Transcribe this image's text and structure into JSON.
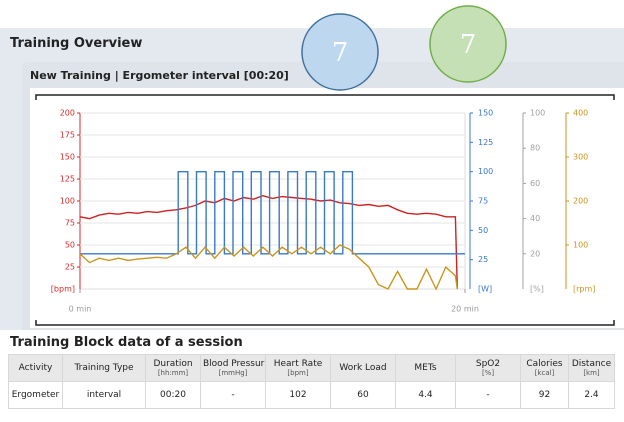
{
  "header": {
    "title": "Training Overview"
  },
  "badges": [
    "7",
    "7"
  ],
  "panel": {
    "title": "New Training | Ergometer interval [00:20]"
  },
  "chart_data": {
    "type": "line",
    "xlim": [
      0,
      20
    ],
    "xticks": [
      {
        "value": 0,
        "label": "0 min"
      },
      {
        "value": 20,
        "label": "20 min"
      }
    ],
    "grid": true,
    "axes": [
      {
        "label": "[bpm]",
        "ylim": [
          0,
          200
        ],
        "yticks": [
          25,
          50,
          75,
          100,
          125,
          150,
          175,
          200
        ],
        "color": "#d42a2a"
      },
      {
        "label": "[W]",
        "ylim": [
          0,
          150
        ],
        "yticks": [
          25,
          50,
          75,
          100,
          125,
          150
        ],
        "color": "#3a78c9"
      },
      {
        "label": "[%]",
        "ylim": [
          0,
          100
        ],
        "yticks": [
          20,
          40,
          60,
          80,
          100
        ],
        "color": "#a0a0a0"
      },
      {
        "label": "[rpm]",
        "ylim": [
          0,
          400
        ],
        "yticks": [
          100,
          200,
          300,
          400
        ],
        "color": "#c8961e"
      }
    ],
    "series": [
      {
        "color": "#cc2222",
        "axis": 0,
        "x": [
          0,
          0.5,
          1,
          1.5,
          2,
          2.5,
          3,
          3.5,
          4,
          4.5,
          5,
          5.5,
          6,
          6.5,
          7,
          7.5,
          8,
          8.5,
          9,
          9.5,
          10,
          10.5,
          11,
          11.5,
          12,
          12.5,
          13,
          13.5,
          14,
          14.5,
          15,
          15.5,
          16,
          16.5,
          17,
          17.5,
          18,
          18.5,
          19,
          19.5,
          19.6
        ],
        "values": [
          82,
          80,
          84,
          86,
          85,
          87,
          86,
          88,
          87,
          89,
          90,
          92,
          95,
          100,
          98,
          103,
          100,
          104,
          102,
          106,
          103,
          105,
          104,
          103,
          102,
          100,
          101,
          98,
          97,
          95,
          96,
          94,
          95,
          90,
          86,
          85,
          86,
          85,
          82,
          82,
          0
        ]
      },
      {
        "color": "#3a78c9",
        "axis": 1,
        "x": [
          0,
          5.1,
          5.1,
          5.6,
          5.6,
          6.05,
          6.05,
          6.55,
          6.55,
          7.0,
          7.0,
          7.5,
          7.5,
          7.95,
          7.95,
          8.45,
          8.45,
          8.9,
          8.9,
          9.4,
          9.4,
          9.85,
          9.85,
          10.35,
          10.35,
          10.8,
          10.8,
          11.3,
          11.3,
          11.75,
          11.75,
          12.25,
          12.25,
          12.7,
          12.7,
          13.2,
          13.2,
          13.65,
          13.65,
          14.15,
          14.15,
          20
        ],
        "values": [
          30,
          30,
          100,
          100,
          30,
          30,
          100,
          100,
          30,
          30,
          100,
          100,
          30,
          30,
          100,
          100,
          30,
          30,
          100,
          100,
          30,
          30,
          100,
          100,
          30,
          30,
          100,
          100,
          30,
          30,
          100,
          100,
          30,
          30,
          100,
          100,
          30,
          30,
          100,
          100,
          30,
          30
        ]
      },
      {
        "color": "#c8961e",
        "axis": 3,
        "x": [
          0,
          0.5,
          1,
          1.5,
          2,
          2.5,
          3,
          3.5,
          4,
          4.5,
          5,
          5.5,
          6,
          6.5,
          7,
          7.5,
          8,
          8.5,
          9,
          9.5,
          10,
          10.5,
          11,
          11.5,
          12,
          12.5,
          13,
          13.5,
          14,
          14.5,
          15,
          15.5,
          16,
          16.5,
          17,
          17.5,
          18,
          18.5,
          19,
          19.5,
          19.6
        ],
        "values": [
          80,
          60,
          70,
          65,
          70,
          65,
          68,
          70,
          72,
          70,
          80,
          95,
          70,
          95,
          70,
          95,
          75,
          95,
          75,
          95,
          75,
          95,
          80,
          95,
          80,
          95,
          80,
          100,
          90,
          70,
          50,
          10,
          0,
          40,
          0,
          0,
          45,
          0,
          50,
          30,
          0
        ]
      }
    ]
  },
  "table": {
    "title": "Training Block data of a session",
    "headers": [
      {
        "label": "Activity"
      },
      {
        "label": "Training Type"
      },
      {
        "label": "Duration",
        "unit": "[hh:mm]"
      },
      {
        "label": "Blood Pressur",
        "unit": "[mmHg]"
      },
      {
        "label": "Heart Rate",
        "unit": "[bpm]"
      },
      {
        "label": "Work Load"
      },
      {
        "label": "METs"
      },
      {
        "label": "SpO2",
        "unit": "[%]"
      },
      {
        "label": "Calories",
        "unit": "[kcal]"
      },
      {
        "label": "Distance",
        "unit": "[km]"
      }
    ],
    "rows": [
      [
        "Ergometer",
        "interval",
        "00:20",
        "-",
        102,
        60,
        4.4,
        "-",
        92,
        2.4
      ]
    ]
  }
}
